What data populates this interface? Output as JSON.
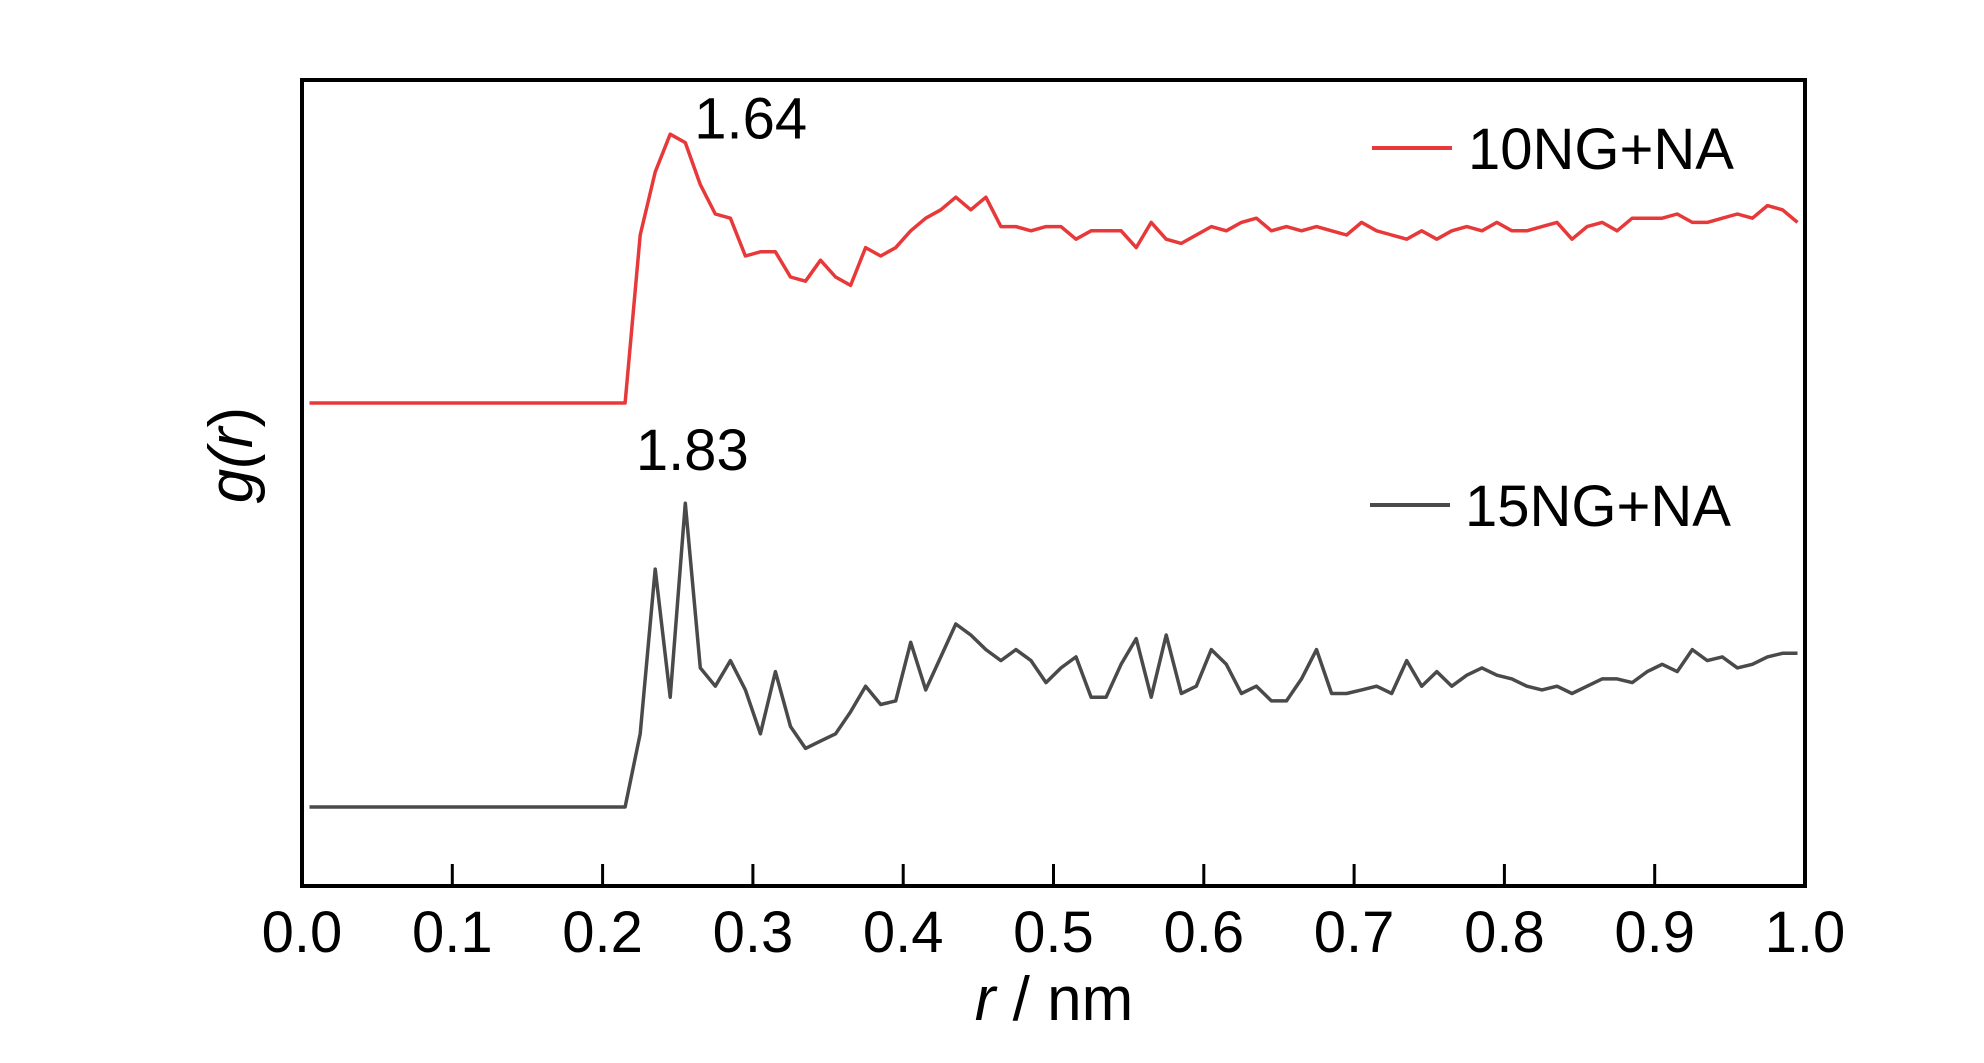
{
  "chart_data": {
    "type": "line",
    "title": "",
    "xlabel_var": "r",
    "xlabel_unit": " / nm",
    "ylabel_var": "g(",
    "ylabel_var_r": "r",
    "ylabel_close": ")",
    "xlim": [
      0.0,
      1.0
    ],
    "xticks": [
      "0.0",
      "0.1",
      "0.2",
      "0.3",
      "0.4",
      "0.5",
      "0.6",
      "0.7",
      "0.8",
      "0.9",
      "1.0"
    ],
    "y_tick_labels": "none",
    "legend_placement": "right",
    "series": [
      {
        "name": "10NG+NA",
        "color": "#e8393a",
        "x": [
          0.005,
          0.025,
          0.045,
          0.065,
          0.085,
          0.105,
          0.125,
          0.145,
          0.165,
          0.185,
          0.205,
          0.215,
          0.225,
          0.235,
          0.245,
          0.255,
          0.265,
          0.275,
          0.285,
          0.295,
          0.305,
          0.315,
          0.325,
          0.335,
          0.345,
          0.355,
          0.365,
          0.375,
          0.385,
          0.395,
          0.405,
          0.415,
          0.425,
          0.435,
          0.445,
          0.455,
          0.465,
          0.475,
          0.485,
          0.495,
          0.505,
          0.515,
          0.525,
          0.535,
          0.545,
          0.555,
          0.565,
          0.575,
          0.585,
          0.595,
          0.605,
          0.615,
          0.625,
          0.635,
          0.645,
          0.655,
          0.665,
          0.675,
          0.685,
          0.695,
          0.705,
          0.715,
          0.725,
          0.735,
          0.745,
          0.755,
          0.765,
          0.775,
          0.785,
          0.795,
          0.805,
          0.815,
          0.825,
          0.835,
          0.845,
          0.855,
          0.865,
          0.875,
          0.885,
          0.895,
          0.905,
          0.915,
          0.925,
          0.935,
          0.945,
          0.955,
          0.965,
          0.975,
          0.985,
          0.995
        ],
        "y": [
          1.0,
          1.0,
          1.0,
          1.0,
          1.0,
          1.0,
          1.0,
          1.0,
          1.0,
          1.0,
          1.0,
          1.0,
          1.4,
          1.55,
          1.64,
          1.62,
          1.52,
          1.45,
          1.44,
          1.35,
          1.36,
          1.36,
          1.3,
          1.29,
          1.34,
          1.3,
          1.28,
          1.37,
          1.35,
          1.37,
          1.41,
          1.44,
          1.46,
          1.49,
          1.46,
          1.49,
          1.42,
          1.42,
          1.41,
          1.42,
          1.42,
          1.39,
          1.41,
          1.41,
          1.41,
          1.37,
          1.43,
          1.39,
          1.38,
          1.4,
          1.42,
          1.41,
          1.43,
          1.44,
          1.41,
          1.42,
          1.41,
          1.42,
          1.41,
          1.4,
          1.43,
          1.41,
          1.4,
          1.39,
          1.41,
          1.39,
          1.41,
          1.42,
          1.41,
          1.43,
          1.41,
          1.41,
          1.42,
          1.43,
          1.39,
          1.42,
          1.43,
          1.41,
          1.44,
          1.44,
          1.44,
          1.45,
          1.43,
          1.43,
          1.44,
          1.45,
          1.44,
          1.47,
          1.46,
          1.43
        ]
      },
      {
        "name": "15NG+NA",
        "color": "#4a4a4a",
        "x": [
          0.005,
          0.025,
          0.045,
          0.065,
          0.085,
          0.105,
          0.125,
          0.145,
          0.165,
          0.185,
          0.205,
          0.215,
          0.225,
          0.235,
          0.245,
          0.255,
          0.265,
          0.275,
          0.285,
          0.295,
          0.305,
          0.315,
          0.325,
          0.335,
          0.345,
          0.355,
          0.365,
          0.375,
          0.385,
          0.395,
          0.405,
          0.415,
          0.425,
          0.435,
          0.445,
          0.455,
          0.465,
          0.475,
          0.485,
          0.495,
          0.505,
          0.515,
          0.525,
          0.535,
          0.545,
          0.555,
          0.565,
          0.575,
          0.585,
          0.595,
          0.605,
          0.615,
          0.625,
          0.635,
          0.645,
          0.655,
          0.665,
          0.675,
          0.685,
          0.695,
          0.705,
          0.715,
          0.725,
          0.735,
          0.745,
          0.755,
          0.765,
          0.775,
          0.785,
          0.795,
          0.805,
          0.815,
          0.825,
          0.835,
          0.845,
          0.855,
          0.865,
          0.875,
          0.885,
          0.895,
          0.905,
          0.915,
          0.925,
          0.935,
          0.945,
          0.955,
          0.965,
          0.975,
          0.985,
          0.995
        ],
        "y": [
          1.0,
          1.0,
          1.0,
          1.0,
          1.0,
          1.0,
          1.0,
          1.0,
          1.0,
          1.0,
          1.0,
          1.0,
          1.2,
          1.65,
          1.3,
          1.83,
          1.38,
          1.33,
          1.4,
          1.32,
          1.2,
          1.37,
          1.22,
          1.16,
          1.18,
          1.2,
          1.26,
          1.33,
          1.28,
          1.29,
          1.45,
          1.32,
          1.41,
          1.5,
          1.47,
          1.43,
          1.4,
          1.43,
          1.4,
          1.34,
          1.38,
          1.41,
          1.3,
          1.3,
          1.39,
          1.46,
          1.3,
          1.47,
          1.31,
          1.33,
          1.43,
          1.39,
          1.31,
          1.33,
          1.29,
          1.29,
          1.35,
          1.43,
          1.31,
          1.31,
          1.32,
          1.33,
          1.31,
          1.4,
          1.33,
          1.37,
          1.33,
          1.36,
          1.38,
          1.36,
          1.35,
          1.33,
          1.32,
          1.33,
          1.31,
          1.33,
          1.35,
          1.35,
          1.34,
          1.37,
          1.39,
          1.37,
          1.43,
          1.4,
          1.41,
          1.38,
          1.39,
          1.41,
          1.42,
          1.42
        ]
      }
    ],
    "annotations": [
      {
        "text": "1.64",
        "series": 0,
        "x": 0.255
      },
      {
        "text": "1.83",
        "series": 1,
        "x": 0.255
      }
    ]
  }
}
